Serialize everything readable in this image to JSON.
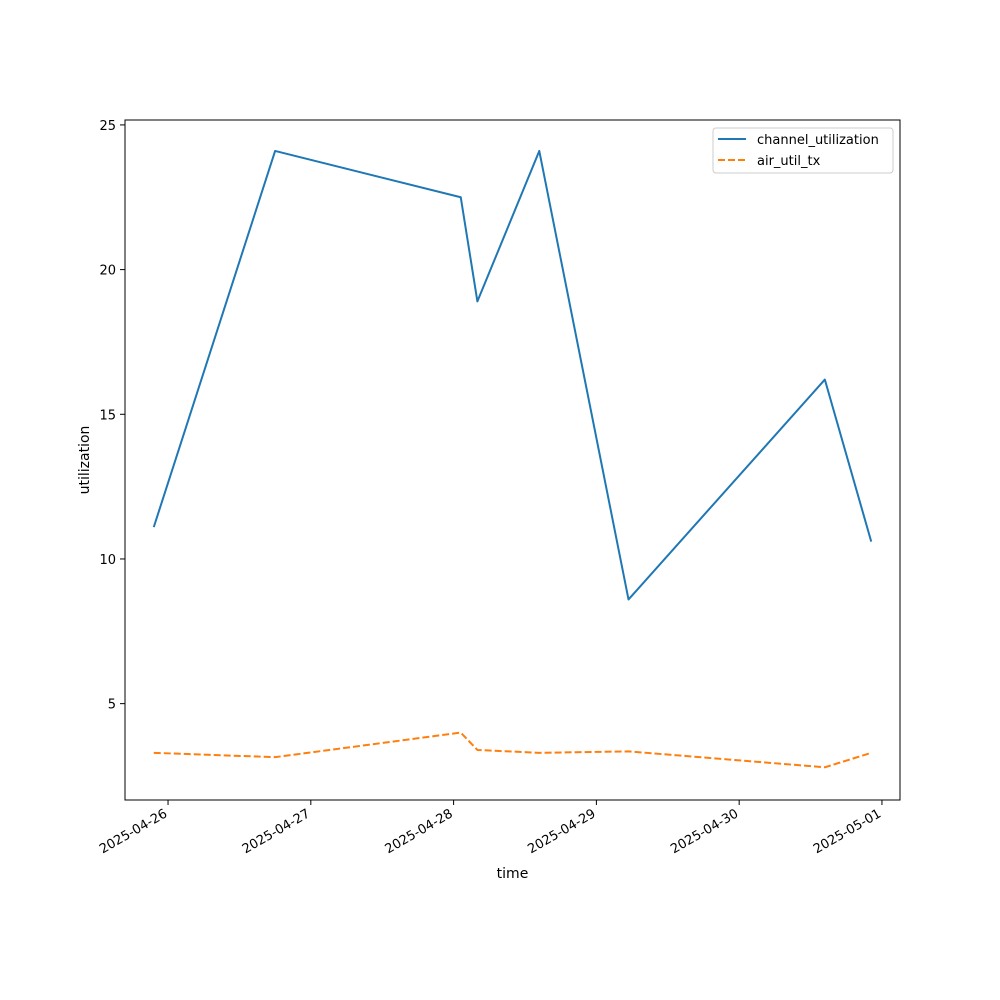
{
  "chart_data": {
    "type": "line",
    "title": "",
    "xlabel": "time",
    "ylabel": "utilization",
    "x": [
      "2025-04-25 21:36",
      "2025-04-26 18:00",
      "2025-04-28 01:12",
      "2025-04-28 04:00",
      "2025-04-28 14:24",
      "2025-04-29 05:24",
      "2025-04-30 14:24",
      "2025-04-30 22:12"
    ],
    "series": [
      {
        "name": "channel_utilization",
        "color": "#1f77b4",
        "style": "solid",
        "values": [
          11.1,
          24.1,
          22.5,
          18.9,
          24.1,
          8.6,
          16.2,
          10.6
        ]
      },
      {
        "name": "air_util_tx",
        "color": "#ff7f0e",
        "style": "dashed",
        "values": [
          3.3,
          3.15,
          4.0,
          3.4,
          3.3,
          3.35,
          2.8,
          3.3
        ]
      }
    ],
    "xticks": [
      "2025-04-26",
      "2025-04-27",
      "2025-04-28",
      "2025-04-29",
      "2025-04-30",
      "2025-05-01"
    ],
    "yticks": [
      5,
      10,
      15,
      20,
      25
    ],
    "xlim": [
      "2025-04-25 16:46",
      "2025-05-01 03:02"
    ],
    "ylim": [
      1.67,
      25.17
    ],
    "grid": false,
    "legend": "top-right"
  }
}
